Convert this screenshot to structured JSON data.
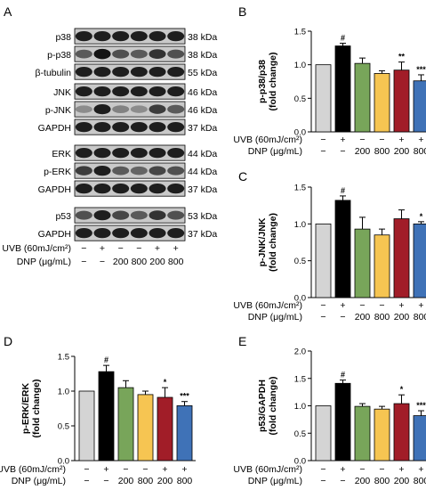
{
  "figure": {
    "panel_labels": [
      "A",
      "B",
      "C",
      "D",
      "E"
    ]
  },
  "western_blot": {
    "rows": [
      {
        "protein": "p38",
        "kda": "38 kDa"
      },
      {
        "protein": "p-p38",
        "kda": "38 kDa"
      },
      {
        "protein": "β-tubulin",
        "kda": "55 kDa"
      },
      {
        "protein": "JNK",
        "kda": "46 kDa"
      },
      {
        "protein": "p-JNK",
        "kda": "46 kDa"
      },
      {
        "protein": "GAPDH",
        "kda": "37 kDa"
      },
      {
        "protein": "ERK",
        "kda": "44 kDa"
      },
      {
        "protein": "p-ERK",
        "kda": "44 kDa"
      },
      {
        "protein": "GAPDH",
        "kda": "37 kDa"
      },
      {
        "protein": "p53",
        "kda": "53 kDa"
      },
      {
        "protein": "GAPDH",
        "kda": "37 kDa"
      }
    ],
    "uvb_label": "UVB (60mJ/cm²)",
    "dnp_label": "DNP (μg/mL)",
    "uvb_signs": [
      "−",
      "+",
      "−",
      "−",
      "+",
      "+"
    ],
    "dnp_values": [
      "−",
      "−",
      "200",
      "800",
      "200",
      "800"
    ],
    "band_intensity": {
      "p38": [
        0.85,
        0.85,
        0.85,
        0.85,
        0.85,
        0.85
      ],
      "p-p38": [
        0.55,
        0.9,
        0.6,
        0.55,
        0.75,
        0.6
      ],
      "β-tubulin": [
        0.85,
        0.85,
        0.85,
        0.85,
        0.85,
        0.85
      ],
      "JNK": [
        0.85,
        0.85,
        0.85,
        0.85,
        0.85,
        0.85
      ],
      "p-JNK": [
        0.3,
        0.85,
        0.35,
        0.3,
        0.7,
        0.55
      ],
      "GAPDH": [
        0.85,
        0.85,
        0.85,
        0.85,
        0.85,
        0.85
      ],
      "ERK": [
        0.85,
        0.85,
        0.85,
        0.85,
        0.85,
        0.85
      ],
      "p-ERK": [
        0.7,
        0.85,
        0.55,
        0.5,
        0.65,
        0.6
      ],
      "p53": [
        0.6,
        0.85,
        0.65,
        0.55,
        0.75,
        0.6
      ]
    }
  },
  "x_conditions": {
    "uvb_label": "UVB (60mJ/cm²)",
    "dnp_label": "DNP (μg/mL)",
    "uvb_signs": [
      "−",
      "+",
      "−",
      "−",
      "+",
      "+"
    ],
    "dnp_values": [
      "−",
      "−",
      "200",
      "800",
      "200",
      "800"
    ]
  },
  "colors": {
    "bars": [
      "#d4d4d4",
      "#000000",
      "#78a55a",
      "#f6c552",
      "#a11d28",
      "#3f72b7"
    ]
  },
  "chart_data": [
    {
      "panel": "B",
      "type": "bar",
      "ylabel_line1": "p-p38/p38",
      "ylabel_line2": "(fold change)",
      "ylim": [
        0,
        1.5
      ],
      "yticks": [
        "0.0",
        "0.5",
        "1.0",
        "1.5"
      ],
      "values": [
        1.0,
        1.28,
        1.02,
        0.87,
        0.92,
        0.76
      ],
      "errors": [
        0,
        0.04,
        0.08,
        0.04,
        0.12,
        0.09
      ],
      "annotations": [
        "",
        "#",
        "",
        "",
        "**",
        "***"
      ]
    },
    {
      "panel": "C",
      "type": "bar",
      "ylabel_line1": "p-JNK/JNK",
      "ylabel_line2": "(fold change)",
      "ylim": [
        0,
        1.5
      ],
      "yticks": [
        "0.0",
        "0.5",
        "1.0",
        "1.5"
      ],
      "values": [
        1.0,
        1.32,
        0.93,
        0.85,
        1.07,
        1.0
      ],
      "errors": [
        0,
        0.06,
        0.16,
        0.08,
        0.12,
        0.03
      ],
      "annotations": [
        "",
        "#",
        "",
        "",
        "",
        "*"
      ]
    },
    {
      "panel": "D",
      "type": "bar",
      "ylabel_line1": "p-ERK/ERK",
      "ylabel_line2": "(fold change)",
      "ylim": [
        0,
        1.5
      ],
      "yticks": [
        "0.0",
        "0.5",
        "1.0",
        "1.5"
      ],
      "values": [
        1.0,
        1.28,
        1.05,
        0.95,
        0.91,
        0.79
      ],
      "errors": [
        0,
        0.09,
        0.1,
        0.05,
        0.14,
        0.06
      ],
      "annotations": [
        "",
        "#",
        "",
        "",
        "*",
        "***"
      ]
    },
    {
      "panel": "E",
      "type": "bar",
      "ylabel_line1": "p53/GAPDH",
      "ylabel_line2": "(fold change)",
      "ylim": [
        0,
        2.0
      ],
      "yticks": [
        "0.0",
        "0.5",
        "1.0",
        "1.5",
        "2.0"
      ],
      "values": [
        1.0,
        1.41,
        0.99,
        0.94,
        1.04,
        0.82
      ],
      "errors": [
        0,
        0.06,
        0.05,
        0.05,
        0.16,
        0.09
      ],
      "annotations": [
        "",
        "#",
        "",
        "",
        "*",
        "***"
      ]
    }
  ]
}
